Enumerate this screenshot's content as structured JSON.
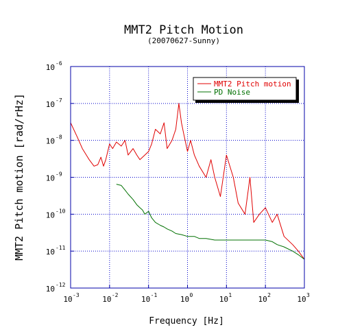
{
  "chart_data": {
    "type": "line",
    "title": "MMT2 Pitch Motion",
    "subtitle": "(20070627-Sunny)",
    "xlabel": "Frequency [Hz]",
    "ylabel": "MMT2 Pitch motion [rad/rHz]",
    "x_scale": "log",
    "y_scale": "log",
    "xlim": [
      0.001,
      1000
    ],
    "ylim": [
      1e-12,
      1e-06
    ],
    "grid": true,
    "legend_position": "top-right",
    "x_ticks": [
      {
        "base": "10",
        "exp": "-3",
        "value": 0.001
      },
      {
        "base": "10",
        "exp": "-2",
        "value": 0.01
      },
      {
        "base": "10",
        "exp": "-1",
        "value": 0.1
      },
      {
        "base": "10",
        "exp": "0",
        "value": 1
      },
      {
        "base": "10",
        "exp": "1",
        "value": 10
      },
      {
        "base": "10",
        "exp": "2",
        "value": 100
      },
      {
        "base": "10",
        "exp": "3",
        "value": 1000
      }
    ],
    "y_ticks": [
      {
        "base": "10",
        "exp": "-12",
        "value": 1e-12
      },
      {
        "base": "10",
        "exp": "-11",
        "value": 1e-11
      },
      {
        "base": "10",
        "exp": "-10",
        "value": 1e-10
      },
      {
        "base": "10",
        "exp": "-9",
        "value": 1e-09
      },
      {
        "base": "10",
        "exp": "-8",
        "value": 1e-08
      },
      {
        "base": "10",
        "exp": "-7",
        "value": 1e-07
      },
      {
        "base": "10",
        "exp": "-6",
        "value": 1e-06
      }
    ],
    "series": [
      {
        "name": "MMT2 Pitch motion",
        "color": "#e00000",
        "x": [
          0.001,
          0.0015,
          0.002,
          0.003,
          0.004,
          0.005,
          0.006,
          0.007,
          0.008,
          0.01,
          0.012,
          0.015,
          0.02,
          0.025,
          0.03,
          0.04,
          0.05,
          0.06,
          0.08,
          0.1,
          0.12,
          0.15,
          0.2,
          0.25,
          0.3,
          0.4,
          0.5,
          0.6,
          0.7,
          0.8,
          1.0,
          1.2,
          1.5,
          2.0,
          3.0,
          4.0,
          5.0,
          7.0,
          10.0,
          15.0,
          20.0,
          30.0,
          40.0,
          50.0,
          70.0,
          100.0,
          150.0,
          200.0,
          300.0,
          500.0,
          700.0,
          1000.0
        ],
        "y": [
          3e-08,
          1.2e-08,
          6e-09,
          3e-09,
          2e-09,
          2.2e-09,
          3.5e-09,
          2e-09,
          3e-09,
          8e-09,
          6e-09,
          9e-09,
          7e-09,
          1e-08,
          4e-09,
          6e-09,
          4e-09,
          3e-09,
          4e-09,
          5e-09,
          8e-09,
          2e-08,
          1.5e-08,
          3e-08,
          6e-09,
          1e-08,
          2e-08,
          1e-07,
          3e-08,
          1.5e-08,
          5e-09,
          1e-08,
          4e-09,
          2e-09,
          1e-09,
          3e-09,
          1e-09,
          3e-10,
          4e-09,
          1e-09,
          2e-10,
          1e-10,
          1e-09,
          6e-11,
          1e-10,
          1.5e-10,
          6e-11,
          1e-10,
          2.5e-11,
          1.5e-11,
          1e-11,
          6e-12
        ]
      },
      {
        "name": "PD Noise",
        "color": "#007000",
        "x": [
          0.015,
          0.02,
          0.025,
          0.03,
          0.04,
          0.05,
          0.06,
          0.07,
          0.08,
          0.1,
          0.12,
          0.15,
          0.2,
          0.25,
          0.3,
          0.4,
          0.5,
          0.7,
          1.0,
          1.5,
          2.0,
          3.0,
          5.0,
          7.0,
          10.0,
          15.0,
          20.0,
          30.0,
          50.0,
          70.0,
          100.0,
          150.0,
          200.0,
          300.0,
          500.0,
          700.0,
          1000.0
        ],
        "y": [
          6.5e-10,
          6e-10,
          4.5e-10,
          3.5e-10,
          2.5e-10,
          1.8e-10,
          1.5e-10,
          1.3e-10,
          1e-10,
          1.2e-10,
          8e-11,
          6e-11,
          5e-11,
          4.5e-11,
          4e-11,
          3.5e-11,
          3e-11,
          2.8e-11,
          2.5e-11,
          2.5e-11,
          2.2e-11,
          2.2e-11,
          2e-11,
          2e-11,
          2e-11,
          2e-11,
          2e-11,
          2e-11,
          2e-11,
          2e-11,
          2e-11,
          1.8e-11,
          1.5e-11,
          1.3e-11,
          1e-11,
          8e-12,
          6e-12
        ]
      }
    ]
  }
}
